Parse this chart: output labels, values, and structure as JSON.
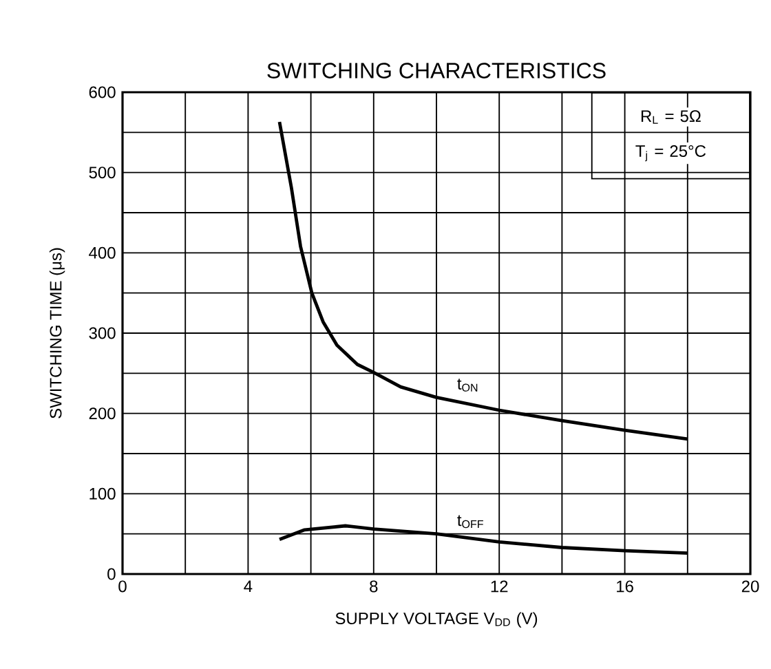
{
  "chart_data": {
    "type": "line",
    "title": "SWITCHING CHARACTERISTICS",
    "xlabel": "SUPPLY VOLTAGE  V$_{DD}$  (V)",
    "ylabel": "SWITCHING TIME  (μs)",
    "series": [
      {
        "name": "t$_{ON}$",
        "color": "#000000",
        "x": [
          5,
          5.38,
          5.67,
          6.03,
          6.39,
          6.83,
          7.48,
          8,
          8.86,
          10,
          12,
          14,
          16,
          18
        ],
        "values": [
          563,
          481,
          408,
          350,
          314,
          285,
          261,
          251,
          233,
          220,
          204,
          191,
          179,
          168
        ]
      },
      {
        "name": "t$_{OFF}$",
        "color": "#000000",
        "x": [
          5,
          5.8,
          7.1,
          8,
          10,
          12,
          14,
          16,
          18
        ],
        "values": [
          43,
          55,
          60,
          56,
          50,
          40,
          33,
          29,
          26
        ]
      }
    ],
    "annotations": [
      "R$_{L}$ = 5Ω",
      "T$_{j}$ = 25°C"
    ],
    "xlim": [
      0,
      20
    ],
    "ylim": [
      0,
      600
    ],
    "xticks": [
      0,
      {
        "value": 2,
        "label": null
      },
      4,
      {
        "value": 6,
        "label": null
      },
      8,
      {
        "value": 10,
        "label": null
      },
      12,
      {
        "value": 14,
        "label": null
      },
      16,
      {
        "value": 18,
        "label": null
      },
      20
    ],
    "yticks": [
      0,
      {
        "value": 50,
        "label": null
      },
      100,
      {
        "value": 150,
        "label": null
      },
      200,
      {
        "value": 250,
        "label": null
      },
      300,
      {
        "value": 350,
        "label": null
      },
      400,
      {
        "value": 450,
        "label": null
      },
      500,
      {
        "value": 550,
        "label": null
      },
      600
    ],
    "grid": true,
    "legend": false,
    "marker": "none",
    "line_style": "solid"
  }
}
